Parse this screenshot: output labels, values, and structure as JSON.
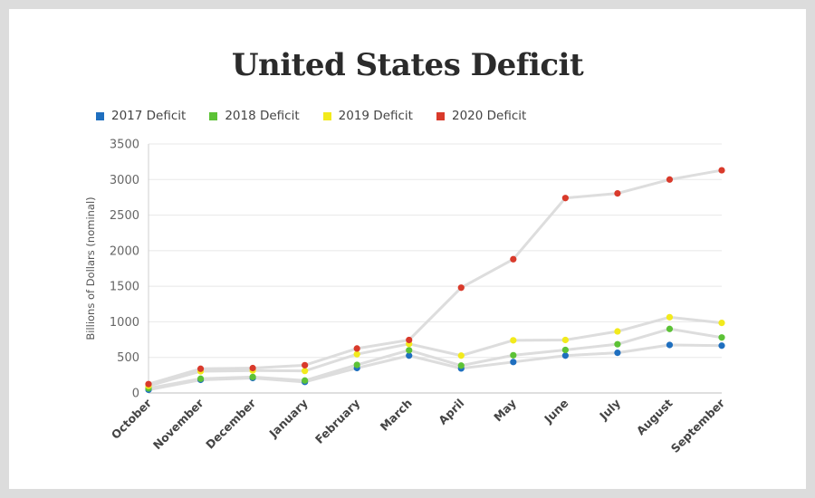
{
  "chart_data": {
    "type": "line",
    "title": "United States Deficit",
    "xlabel": "",
    "ylabel": "Billions of Dollars (nominal)",
    "ylim": [
      0,
      3500
    ],
    "yticks": [
      0,
      500,
      1000,
      1500,
      2000,
      2500,
      3000,
      3500
    ],
    "grid": true,
    "legend_position": "top-left",
    "categories": [
      "October",
      "November",
      "December",
      "January",
      "February",
      "March",
      "April",
      "May",
      "June",
      "July",
      "August",
      "September"
    ],
    "line_color": "#dddddd",
    "series": [
      {
        "name": "2017 Deficit",
        "color": "#1f6fbf",
        "values": [
          45,
          185,
          210,
          155,
          350,
          525,
          345,
          435,
          525,
          565,
          675,
          665
        ]
      },
      {
        "name": "2018 Deficit",
        "color": "#5cc236",
        "values": [
          65,
          200,
          225,
          175,
          395,
          600,
          385,
          530,
          605,
          685,
          900,
          780
        ]
      },
      {
        "name": "2019 Deficit",
        "color": "#f2ea1c",
        "values": [
          100,
          305,
          315,
          310,
          545,
          690,
          525,
          740,
          745,
          865,
          1065,
          985
        ]
      },
      {
        "name": "2020 Deficit",
        "color": "#d93a2b",
        "values": [
          125,
          340,
          350,
          390,
          625,
          745,
          1480,
          1880,
          2740,
          2805,
          3000,
          3130
        ]
      }
    ]
  }
}
